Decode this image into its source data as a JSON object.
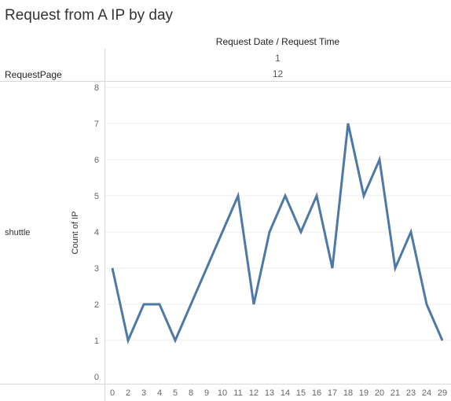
{
  "title": "Request from A IP by day",
  "column_header": {
    "label": "Request Date  /  Request Time",
    "level1": "1",
    "level2": "12"
  },
  "row_header": {
    "label": "RequestPage",
    "value": "shuttle"
  },
  "colors": {
    "line": "#4e79a7",
    "grid": "#ececec",
    "rule": "#d8d8d8"
  },
  "chart_data": {
    "type": "line",
    "title": "Request from A IP by day",
    "xlabel": "",
    "ylabel": "Count of IP",
    "categories": [
      "0",
      "2",
      "3",
      "4",
      "5",
      "8",
      "9",
      "10",
      "11",
      "12",
      "13",
      "14",
      "15",
      "16",
      "17",
      "18",
      "19",
      "20",
      "21",
      "23",
      "24",
      "29"
    ],
    "series": [
      {
        "values": [
          3,
          1,
          2,
          2,
          1,
          2,
          3,
          4,
          5,
          2,
          4,
          5,
          4,
          5,
          3,
          7,
          5,
          6,
          3,
          4,
          2,
          1
        ]
      }
    ],
    "ylim": [
      0,
      8
    ],
    "yticks": [
      0,
      1,
      2,
      3,
      4,
      5,
      6,
      7,
      8
    ],
    "grid": true,
    "legend": "none"
  }
}
